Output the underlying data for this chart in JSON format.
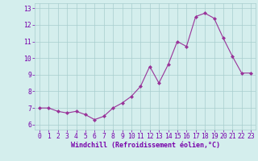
{
  "x": [
    0,
    1,
    2,
    3,
    4,
    5,
    6,
    7,
    8,
    9,
    10,
    11,
    12,
    13,
    14,
    15,
    16,
    17,
    18,
    19,
    20,
    21,
    22,
    23
  ],
  "y": [
    7.0,
    7.0,
    6.8,
    6.7,
    6.8,
    6.6,
    6.3,
    6.5,
    7.0,
    7.3,
    7.7,
    8.3,
    9.5,
    8.5,
    9.6,
    11.0,
    10.7,
    12.5,
    12.7,
    12.4,
    11.2,
    10.1,
    9.1,
    9.1
  ],
  "line_color": "#993399",
  "marker": "D",
  "marker_size": 2.0,
  "bg_color": "#d4eeed",
  "grid_color": "#a8cece",
  "xlabel": "Windchill (Refroidissement éolien,°C)",
  "xlabel_color": "#7700aa",
  "xlabel_fontsize": 6.0,
  "tick_color": "#7700aa",
  "tick_fontsize": 5.8,
  "ylim": [
    5.7,
    13.3
  ],
  "xlim": [
    -0.5,
    23.5
  ],
  "yticks": [
    6,
    7,
    8,
    9,
    10,
    11,
    12,
    13
  ],
  "xticks": [
    0,
    1,
    2,
    3,
    4,
    5,
    6,
    7,
    8,
    9,
    10,
    11,
    12,
    13,
    14,
    15,
    16,
    17,
    18,
    19,
    20,
    21,
    22,
    23
  ]
}
